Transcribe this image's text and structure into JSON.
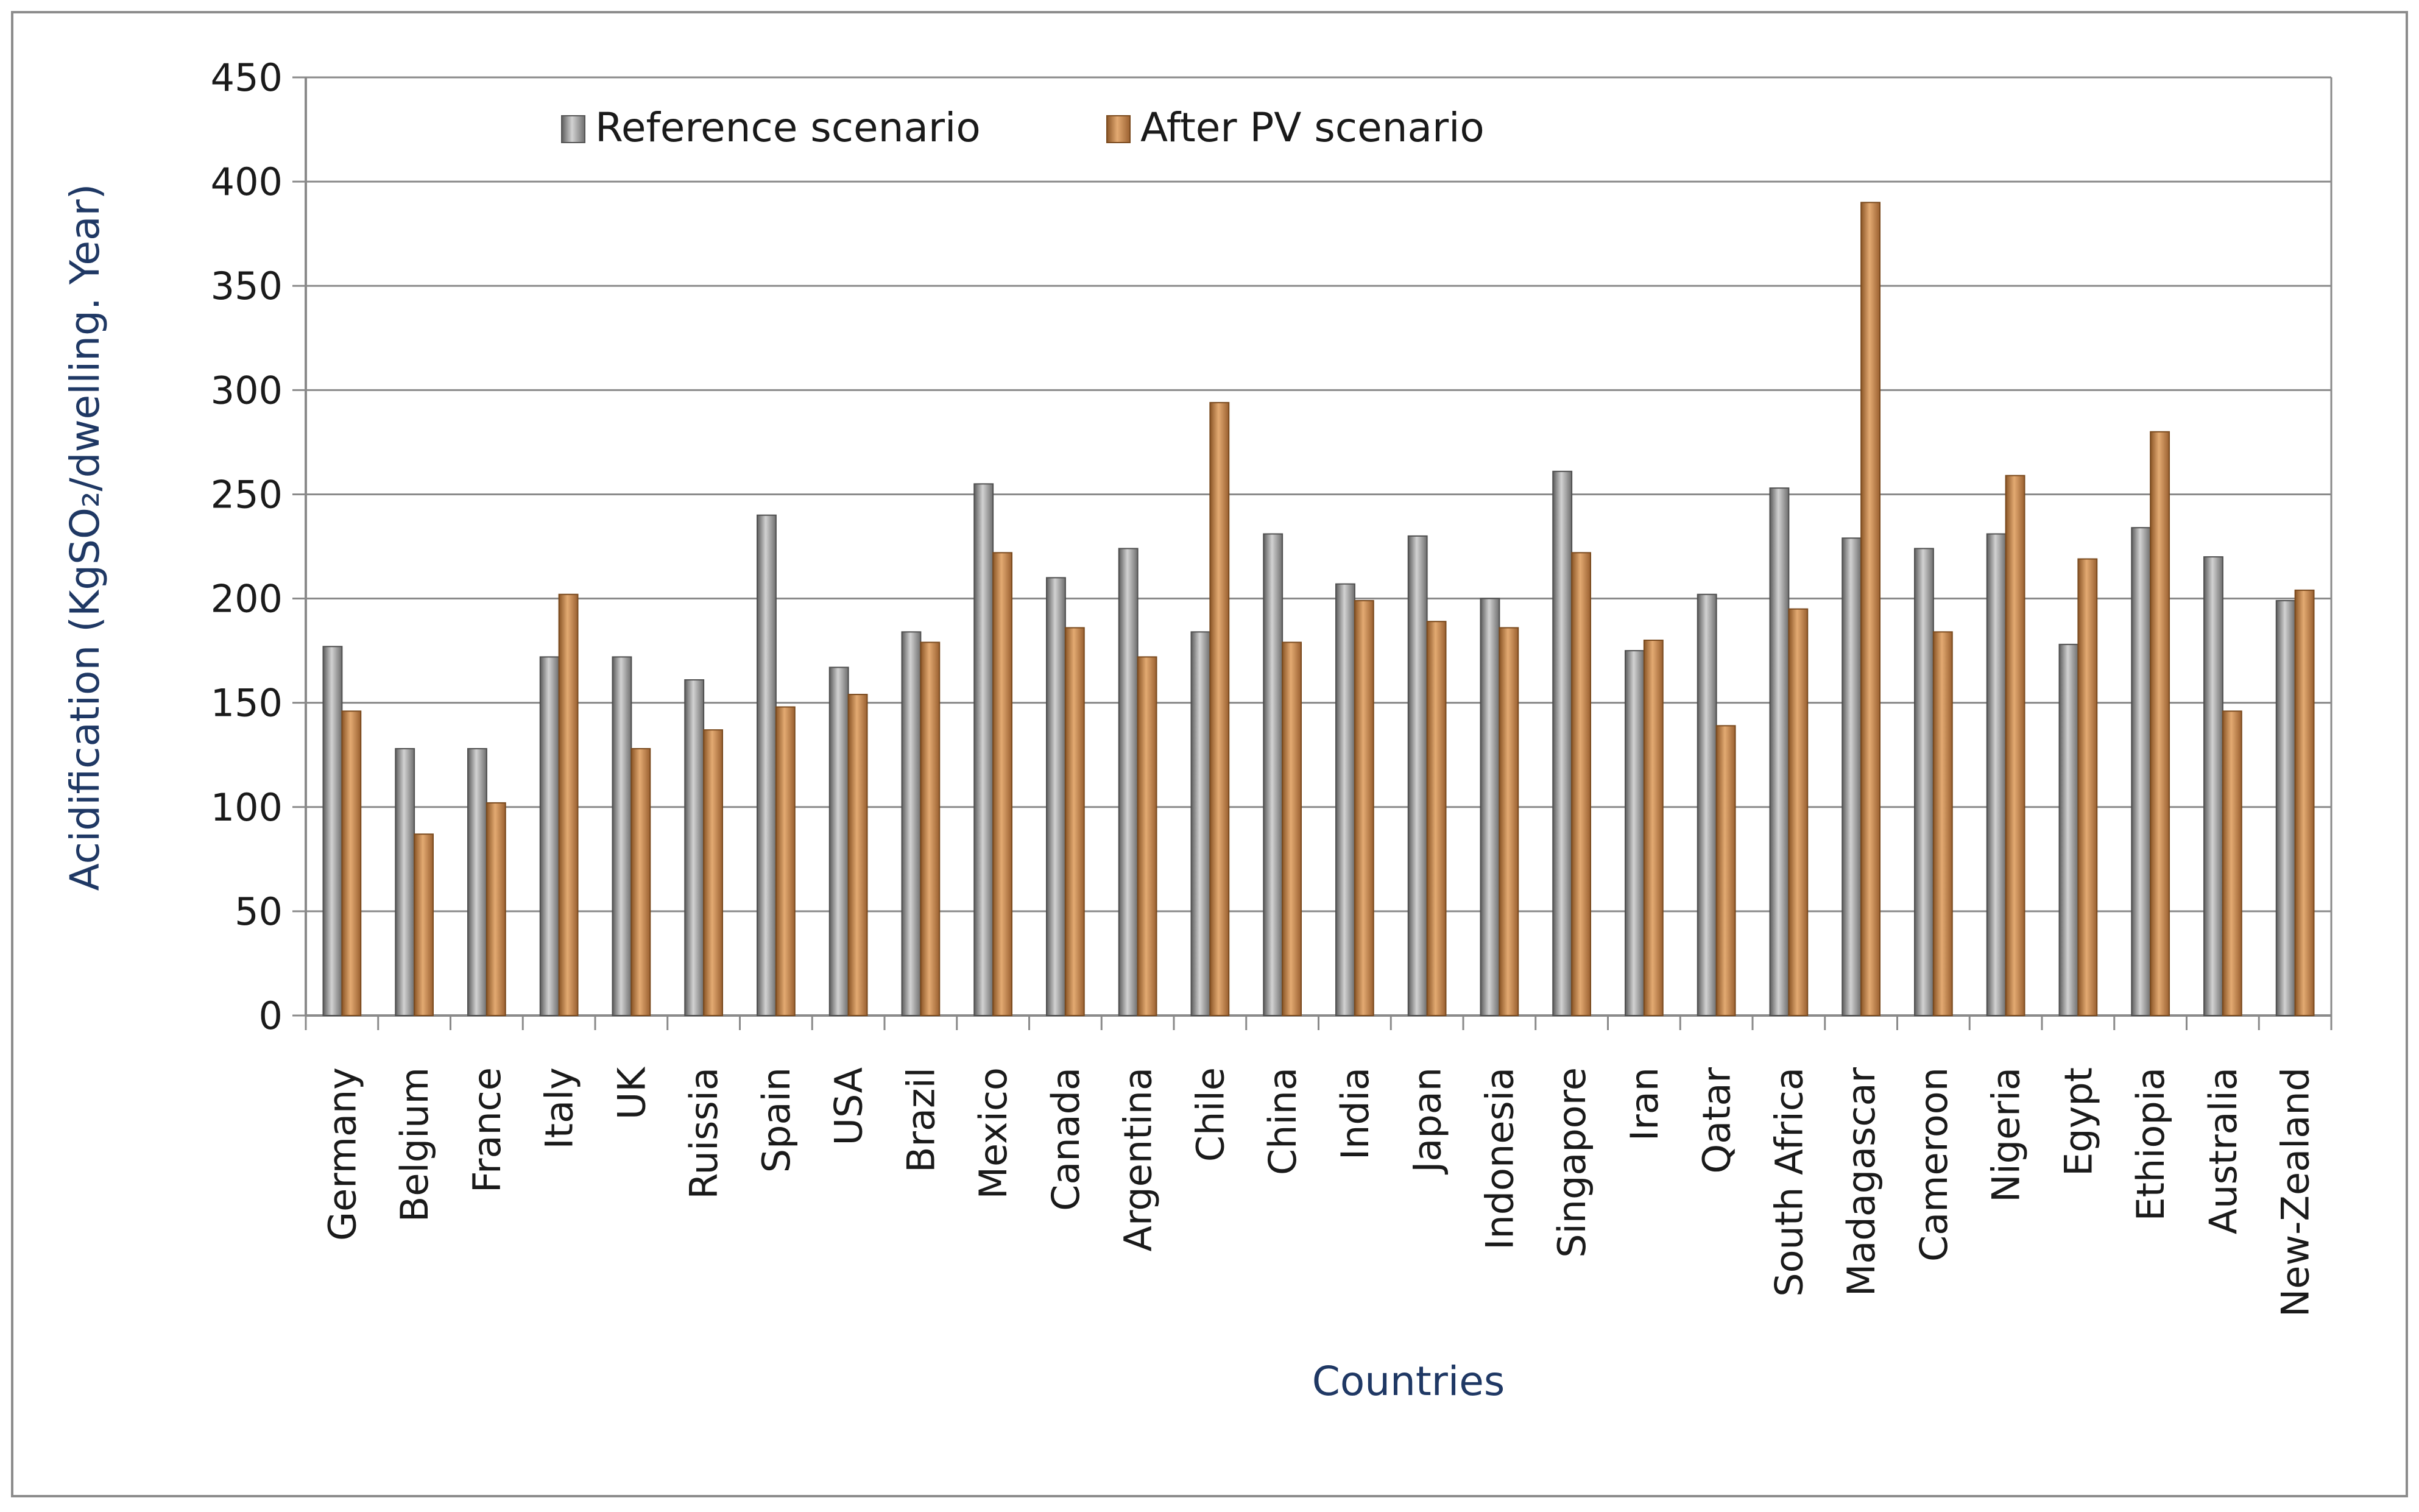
{
  "chart_data": {
    "type": "bar",
    "xlabel": "Countries",
    "ylabel": "Acidification (KgSO₂/dwelling. Year)",
    "ylim": [
      0,
      450
    ],
    "yticks": [
      0,
      50,
      100,
      150,
      200,
      250,
      300,
      350,
      400,
      450
    ],
    "grid": true,
    "legend_position": "top-left",
    "categories": [
      "Germany",
      "Belgium",
      "France",
      "Italy",
      "UK",
      "Ruissia",
      "Spain",
      "USA",
      "Brazil",
      "Mexico",
      "Canada",
      "Argentina",
      "Chile",
      "China",
      "India",
      "Japan",
      "Indonesia",
      "Singapore",
      "Iran",
      "Qatar",
      "South Africa",
      "Madagascar",
      "Cameroon",
      "Nigeria",
      "Egypt",
      "Ethiopia",
      "Australia",
      "New-Zealand"
    ],
    "series": [
      {
        "name": "Reference scenario",
        "color": "#9a9a9a",
        "values": [
          177,
          128,
          128,
          172,
          172,
          161,
          240,
          167,
          184,
          255,
          210,
          224,
          184,
          231,
          207,
          230,
          200,
          261,
          175,
          202,
          253,
          229,
          224,
          231,
          178,
          234,
          220,
          199
        ]
      },
      {
        "name": "After PV scenario",
        "color": "#c8874a",
        "values": [
          146,
          87,
          102,
          202,
          128,
          137,
          148,
          154,
          179,
          222,
          186,
          172,
          294,
          179,
          199,
          189,
          186,
          222,
          180,
          139,
          195,
          390,
          184,
          259,
          219,
          280,
          146,
          204
        ]
      }
    ]
  }
}
